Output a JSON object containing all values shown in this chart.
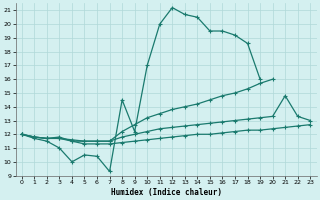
{
  "xlabel": "Humidex (Indice chaleur)",
  "bg_color": "#d4f0f0",
  "line_color": "#1a7a6e",
  "xlim": [
    -0.5,
    23.5
  ],
  "ylim": [
    9,
    21.5
  ],
  "yticks": [
    9,
    10,
    11,
    12,
    13,
    14,
    15,
    16,
    17,
    18,
    19,
    20,
    21
  ],
  "xticks": [
    0,
    1,
    2,
    3,
    4,
    5,
    6,
    7,
    8,
    9,
    10,
    11,
    12,
    13,
    14,
    15,
    16,
    17,
    18,
    19,
    20,
    21,
    22,
    23
  ],
  "line1_x": [
    0,
    1,
    2,
    3,
    4,
    5,
    6,
    7,
    8,
    9,
    10,
    11,
    12,
    13,
    14,
    15,
    16,
    17,
    18,
    19
  ],
  "line1_y": [
    12.0,
    11.7,
    11.5,
    11.0,
    10.0,
    10.5,
    10.4,
    9.3,
    14.5,
    12.2,
    17.0,
    20.0,
    21.2,
    20.7,
    20.5,
    19.5,
    19.5,
    19.2,
    18.6,
    16.0
  ],
  "line2_x": [
    0,
    1,
    2,
    3,
    4,
    5,
    6,
    7,
    8,
    9,
    10,
    11,
    12,
    13,
    14,
    15,
    16,
    17,
    18,
    19,
    20
  ],
  "line2_y": [
    12.0,
    11.8,
    11.7,
    11.8,
    11.5,
    11.5,
    11.5,
    11.5,
    12.2,
    12.7,
    13.2,
    13.5,
    13.8,
    14.0,
    14.2,
    14.5,
    14.8,
    15.0,
    15.3,
    15.7,
    16.0
  ],
  "line3_x": [
    0,
    1,
    2,
    3,
    4,
    5,
    6,
    7,
    8,
    9,
    10,
    11,
    12,
    13,
    14,
    15,
    16,
    17,
    18,
    19,
    20,
    21,
    22,
    23
  ],
  "line3_y": [
    12.0,
    11.8,
    11.7,
    11.7,
    11.6,
    11.5,
    11.5,
    11.5,
    11.8,
    12.0,
    12.2,
    12.4,
    12.5,
    12.6,
    12.7,
    12.8,
    12.9,
    13.0,
    13.1,
    13.2,
    13.3,
    14.8,
    13.3,
    13.0
  ],
  "line4_x": [
    0,
    1,
    2,
    3,
    4,
    5,
    6,
    7,
    8,
    9,
    10,
    11,
    12,
    13,
    14,
    15,
    16,
    17,
    18,
    19,
    20,
    21,
    22,
    23
  ],
  "line4_y": [
    12.0,
    11.8,
    11.7,
    11.7,
    11.5,
    11.3,
    11.3,
    11.3,
    11.4,
    11.5,
    11.6,
    11.7,
    11.8,
    11.9,
    12.0,
    12.0,
    12.1,
    12.2,
    12.3,
    12.3,
    12.4,
    12.5,
    12.6,
    12.7
  ]
}
